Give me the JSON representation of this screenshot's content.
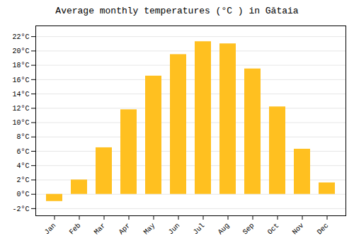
{
  "chart_data": {
    "type": "bar",
    "title": "Average monthly temperatures (°C ) in Gătaia",
    "categories": [
      "Jan",
      "Feb",
      "Mar",
      "Apr",
      "May",
      "Jun",
      "Jul",
      "Aug",
      "Sep",
      "Oct",
      "Nov",
      "Dec"
    ],
    "values": [
      -1.0,
      2.0,
      6.5,
      11.8,
      16.5,
      19.5,
      21.3,
      21.0,
      17.5,
      12.2,
      6.3,
      1.6
    ],
    "color": "#FFC020",
    "ylim": [
      -3.0,
      23.5
    ],
    "yticks": [
      {
        "value": -2,
        "label": "-2°C"
      },
      {
        "value": 0,
        "label": "0°C"
      },
      {
        "value": 2,
        "label": "2°C"
      },
      {
        "value": 4,
        "label": "4°C"
      },
      {
        "value": 6,
        "label": "6°C"
      },
      {
        "value": 8,
        "label": "8°C"
      },
      {
        "value": 10,
        "label": "10°C"
      },
      {
        "value": 12,
        "label": "12°C"
      },
      {
        "value": 14,
        "label": "14°C"
      },
      {
        "value": 16,
        "label": "16°C"
      },
      {
        "value": 18,
        "label": "18°C"
      },
      {
        "value": 20,
        "label": "20°C"
      },
      {
        "value": 22,
        "label": "22°C"
      }
    ],
    "grid": true
  }
}
